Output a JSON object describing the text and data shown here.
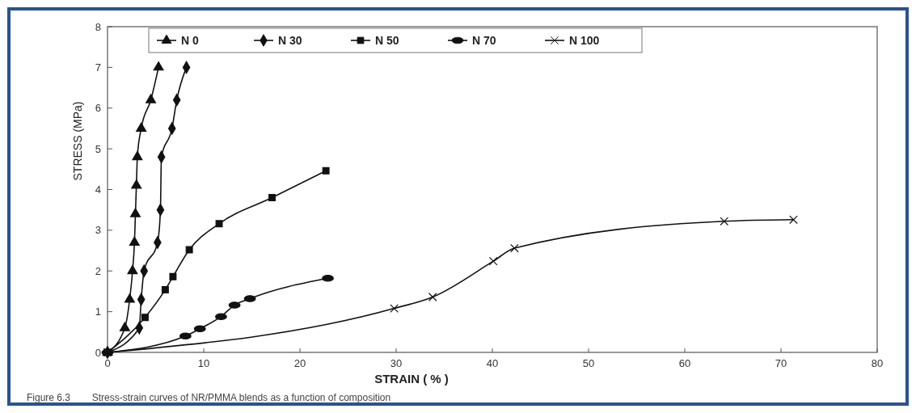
{
  "chart_data": {
    "type": "line",
    "xlabel": "STRAIN ( % )",
    "ylabel": "STRESS (MPa)",
    "annotations": [
      "Figure 6.3        Stress-strain curves of NR/PMMA blends as a function of composition"
    ],
    "xlim": [
      0,
      80
    ],
    "ylim": [
      0,
      8
    ],
    "xticks": [
      0,
      10,
      20,
      30,
      40,
      50,
      60,
      70,
      80
    ],
    "yticks": [
      0,
      1,
      2,
      3,
      4,
      5,
      6,
      7,
      8
    ],
    "legend": "top",
    "grid": false,
    "line_style": "solid",
    "series": [
      {
        "name": "N 0",
        "color": "#111111",
        "marker": "triangle",
        "x": [
          0,
          1.8,
          2.3,
          2.6,
          2.8,
          2.9,
          3.0,
          3.1,
          3.5,
          4.5,
          5.3
        ],
        "values": [
          0,
          0.6,
          1.3,
          2.0,
          2.7,
          3.4,
          4.1,
          4.8,
          5.5,
          6.2,
          7.0
        ]
      },
      {
        "name": "N 30",
        "color": "#111111",
        "marker": "diamond",
        "x": [
          0,
          3.3,
          3.5,
          3.8,
          5.2,
          5.5,
          5.6,
          6.7,
          7.2,
          8.2
        ],
        "values": [
          0,
          0.6,
          1.3,
          2.0,
          2.7,
          3.5,
          4.8,
          5.5,
          6.2,
          7.0
        ]
      },
      {
        "name": "N 50",
        "color": "#111111",
        "marker": "square",
        "x": [
          0,
          3.9,
          6.0,
          6.8,
          8.5,
          11.6,
          17.1,
          22.7
        ],
        "values": [
          0,
          0.86,
          1.54,
          1.86,
          2.52,
          3.16,
          3.8,
          4.46
        ]
      },
      {
        "name": "N 70",
        "color": "#111111",
        "marker": "circle",
        "x": [
          0,
          8.1,
          9.6,
          11.8,
          13.2,
          14.8,
          22.9
        ],
        "values": [
          0,
          0.4,
          0.58,
          0.88,
          1.16,
          1.32,
          1.82
        ]
      },
      {
        "name": "N 100",
        "color": "#111111",
        "marker": "cross",
        "x": [
          0,
          29.8,
          33.8,
          40.1,
          42.3,
          64.1,
          71.3
        ],
        "values": [
          0,
          1.08,
          1.36,
          2.24,
          2.56,
          3.22,
          3.26
        ]
      }
    ]
  }
}
